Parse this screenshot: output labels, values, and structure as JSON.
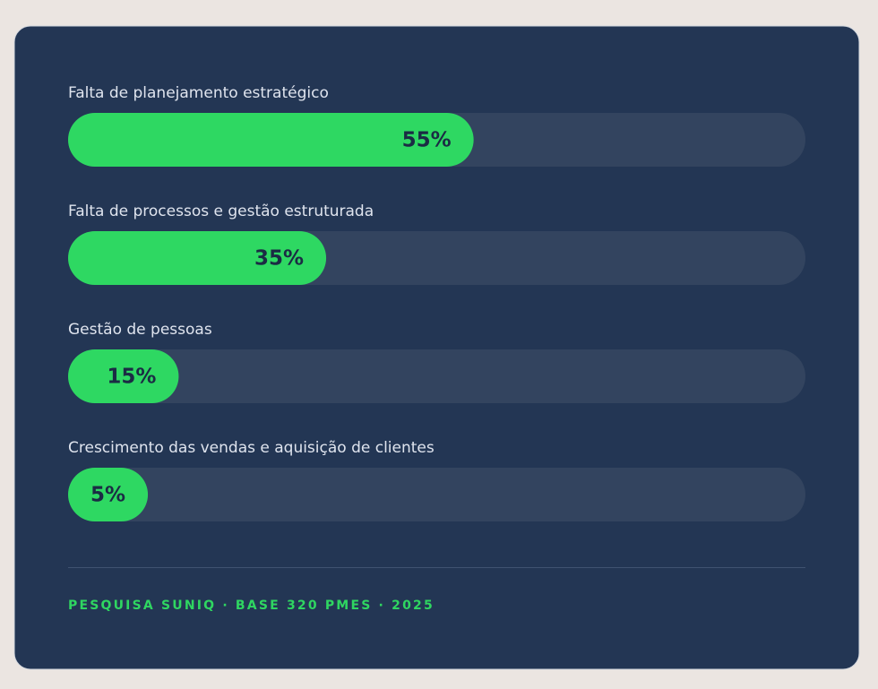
{
  "chart_data": {
    "type": "bar",
    "orientation": "horizontal",
    "categories": [
      "Falta de planejamento estratégico",
      "Falta de processos e gestão estruturada",
      "Gestão de pessoas",
      "Crescimento das vendas e aquisição de clientes"
    ],
    "values": [
      55,
      35,
      15,
      5
    ],
    "value_labels": [
      "55%",
      "35%",
      "15%",
      "5%"
    ],
    "color": "#2ed862",
    "xlim": [
      0,
      100
    ],
    "source": "PESQUISA SUNIQ · BASE 320 PMES · 2025"
  }
}
